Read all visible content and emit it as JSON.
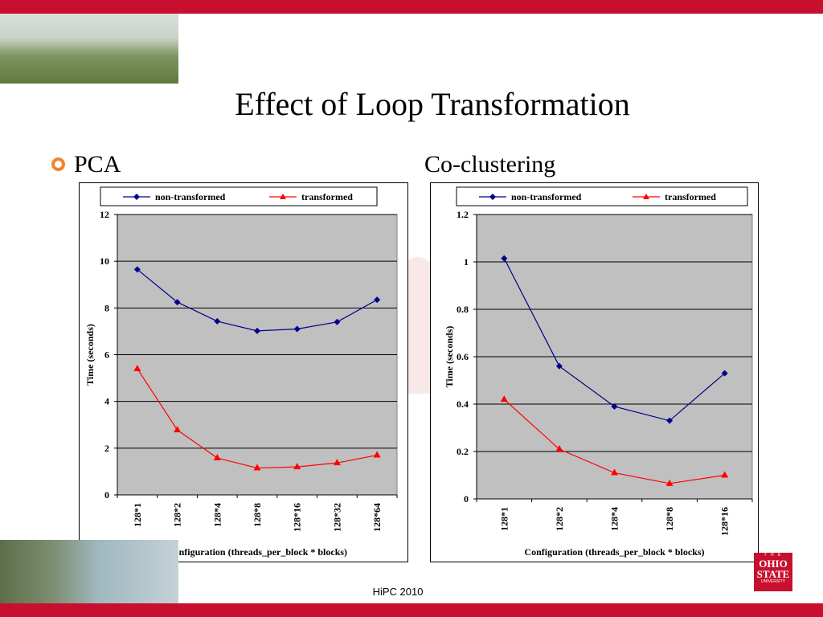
{
  "slide": {
    "title": "Effect of Loop Transformation",
    "footer": "HiPC 2010",
    "bullet_color": "#f0842d",
    "accent_color": "#c8102e"
  },
  "logo": {
    "small_text": "T H E",
    "line1": "OHIO",
    "line2": "STATE",
    "line3": "UNIVERSITY"
  },
  "chart_data": [
    {
      "heading": "PCA",
      "type": "line",
      "categories": [
        "128*1",
        "128*2",
        "128*4",
        "128*8",
        "128*16",
        "128*32",
        "128*64"
      ],
      "series": [
        {
          "name": "non-transformed",
          "color": "#00008b",
          "marker": "diamond",
          "values": [
            9.65,
            8.25,
            7.43,
            7.02,
            7.1,
            7.4,
            8.35
          ]
        },
        {
          "name": "transformed",
          "color": "#ff0000",
          "marker": "triangle",
          "values": [
            5.4,
            2.78,
            1.58,
            1.15,
            1.2,
            1.37,
            1.7
          ]
        }
      ],
      "xlabel": "Configuration (threads_per_block * blocks)",
      "ylabel": "Time (seconds)",
      "ylim": [
        0,
        12
      ],
      "yticks": [
        "0",
        "2",
        "4",
        "6",
        "8",
        "10",
        "12"
      ],
      "grid": true,
      "legend": "top"
    },
    {
      "heading": "Co-clustering",
      "type": "line",
      "categories": [
        "128*1",
        "128*2",
        "128*4",
        "128*8",
        "128*16"
      ],
      "series": [
        {
          "name": "non-transformed",
          "color": "#00008b",
          "marker": "diamond",
          "values": [
            1.015,
            0.56,
            0.39,
            0.33,
            0.53
          ]
        },
        {
          "name": "transformed",
          "color": "#ff0000",
          "marker": "triangle",
          "values": [
            0.42,
            0.21,
            0.11,
            0.065,
            0.1
          ]
        }
      ],
      "xlabel": "Configuration (threads_per_block * blocks)",
      "ylabel": "Time (seconds)",
      "ylim": [
        0,
        1.2
      ],
      "yticks": [
        "0",
        "0.2",
        "0.4",
        "0.6",
        "0.8",
        "1",
        "1.2"
      ],
      "grid": true,
      "legend": "top"
    }
  ]
}
